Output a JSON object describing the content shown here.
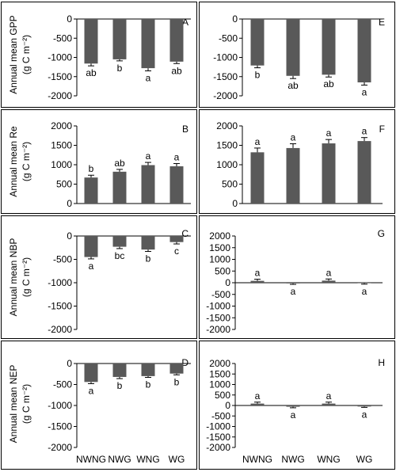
{
  "y_labels": {
    "GPP": [
      "Annual mean GPP",
      "(g C m⁻²)"
    ],
    "Re": [
      "Annual mean Re",
      "(g C m⁻²)"
    ],
    "NBP": [
      "Annual mean NBP",
      "(g C m⁻²)"
    ],
    "NEP": [
      "Annual mean NEP",
      "(g C m⁻²)"
    ]
  },
  "categories": [
    "NWNG",
    "NWG",
    "WNG",
    "WG"
  ],
  "colors": {
    "bar": "#595959",
    "frame": "#000000"
  },
  "chart_data": [
    {
      "type": "bar",
      "panel": "A",
      "categories": [
        "NWNG",
        "NWG",
        "WNG",
        "WG"
      ],
      "values": [
        -1160,
        -1050,
        -1280,
        -1110
      ],
      "errors": [
        60,
        40,
        70,
        50
      ],
      "letters": [
        "ab",
        "b",
        "a",
        "ab"
      ],
      "yticks": [
        0,
        -500,
        -1000,
        -1500,
        -2000
      ],
      "ylim": [
        -2000,
        0
      ],
      "ylabel": "Annual mean GPP (g C m⁻²)"
    },
    {
      "type": "bar",
      "panel": "E",
      "categories": [
        "NWNG",
        "NWG",
        "WNG",
        "WG"
      ],
      "values": [
        -1210,
        -1480,
        -1450,
        -1650
      ],
      "errors": [
        60,
        70,
        60,
        70
      ],
      "letters": [
        "b",
        "ab",
        "ab",
        "a"
      ],
      "yticks": [
        0,
        -500,
        -1000,
        -1500,
        -2000
      ],
      "ylim": [
        -2000,
        0
      ]
    },
    {
      "type": "bar",
      "panel": "B",
      "categories": [
        "NWNG",
        "NWG",
        "WNG",
        "WG"
      ],
      "values": [
        670,
        820,
        990,
        960
      ],
      "errors": [
        60,
        60,
        70,
        70
      ],
      "letters": [
        "b",
        "ab",
        "a",
        "a"
      ],
      "yticks": [
        0,
        500,
        1000,
        1500,
        2000
      ],
      "ylim": [
        0,
        2000
      ],
      "ylabel": "Annual mean Re (g C m⁻²)"
    },
    {
      "type": "bar",
      "panel": "F",
      "categories": [
        "NWNG",
        "NWG",
        "WNG",
        "WG"
      ],
      "values": [
        1320,
        1430,
        1550,
        1610
      ],
      "errors": [
        110,
        110,
        100,
        90
      ],
      "letters": [
        "a",
        "a",
        "a",
        "a"
      ],
      "yticks": [
        0,
        500,
        1000,
        1500,
        2000
      ],
      "ylim": [
        0,
        2000
      ]
    },
    {
      "type": "bar",
      "panel": "C",
      "categories": [
        "NWNG",
        "NWG",
        "WNG",
        "WG"
      ],
      "values": [
        -450,
        -230,
        -290,
        -130
      ],
      "errors": [
        40,
        40,
        40,
        40
      ],
      "letters": [
        "a",
        "bc",
        "b",
        "c"
      ],
      "yticks": [
        0,
        -500,
        -1000,
        -1500,
        -2000
      ],
      "ylim": [
        -2000,
        0
      ],
      "ylabel": "Annual mean NBP (g C m⁻²)"
    },
    {
      "type": "bar",
      "panel": "G",
      "categories": [
        "NWNG",
        "NWG",
        "WNG",
        "WG"
      ],
      "values": [
        80,
        -30,
        90,
        -20
      ],
      "errors": [
        70,
        40,
        70,
        40
      ],
      "letters": [
        "a",
        "a",
        "a",
        "a"
      ],
      "yticks": [
        2000,
        1500,
        1000,
        500,
        0,
        -500,
        -1000,
        -1500,
        -2000
      ],
      "ylim": [
        -2000,
        2000
      ]
    },
    {
      "type": "bar",
      "panel": "D",
      "categories": [
        "NWNG",
        "NWG",
        "WNG",
        "WG"
      ],
      "values": [
        -440,
        -320,
        -300,
        -240
      ],
      "errors": [
        40,
        40,
        30,
        30
      ],
      "letters": [
        "a",
        "b",
        "b",
        "b"
      ],
      "yticks": [
        0,
        -500,
        -1000,
        -1500,
        -2000
      ],
      "ylim": [
        -2000,
        0
      ],
      "ylabel": "Annual mean NEP (g C m⁻²)"
    },
    {
      "type": "bar",
      "panel": "H",
      "categories": [
        "NWNG",
        "NWG",
        "WNG",
        "WG"
      ],
      "values": [
        90,
        -60,
        90,
        -50
      ],
      "errors": [
        70,
        50,
        70,
        40
      ],
      "letters": [
        "a",
        "a",
        "a",
        "a"
      ],
      "yticks": [
        2000,
        1500,
        1000,
        500,
        0,
        -500,
        -1000,
        -1500,
        -2000
      ],
      "ylim": [
        -2000,
        2000
      ]
    }
  ]
}
